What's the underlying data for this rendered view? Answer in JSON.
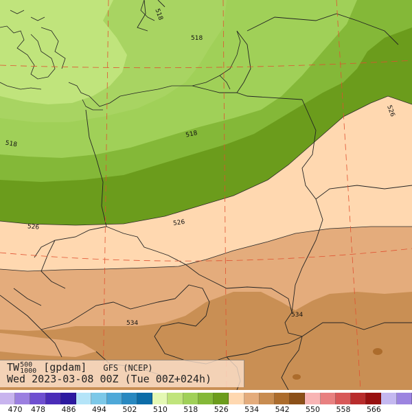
{
  "map": {
    "field_label": "TW",
    "level_top": "500",
    "level_bottom": "1000",
    "units": "[gpdam]",
    "model": "GFS (NCEP)",
    "valid_time": "Wed 2023-03-08 00Z (Tue 00Z+024h)",
    "contour_labels": [
      "518",
      "518",
      "518",
      "526",
      "526",
      "526",
      "534",
      "534"
    ]
  },
  "legend": {
    "colors": [
      "#c8b4ee",
      "#9b7fe0",
      "#6e4fd0",
      "#4a2cb8",
      "#2c1aa0",
      "#b4e4f8",
      "#7cc8e8",
      "#4ea8d8",
      "#2888c0",
      "#0c6ca8",
      "#e4f8b4",
      "#c0e47c",
      "#a0d058",
      "#84b838",
      "#6c9c1c",
      "#ffd8b0",
      "#e4ac7c",
      "#c88c50",
      "#ac6c2c",
      "#8c5018",
      "#f8b4b4",
      "#e88080",
      "#d85858",
      "#b82c2c",
      "#981010",
      "#c4b8f0",
      "#9c84e0"
    ],
    "ticks": [
      "470",
      "478",
      "486",
      "494",
      "502",
      "510",
      "518",
      "526",
      "534",
      "542",
      "550",
      "558",
      "566"
    ]
  }
}
